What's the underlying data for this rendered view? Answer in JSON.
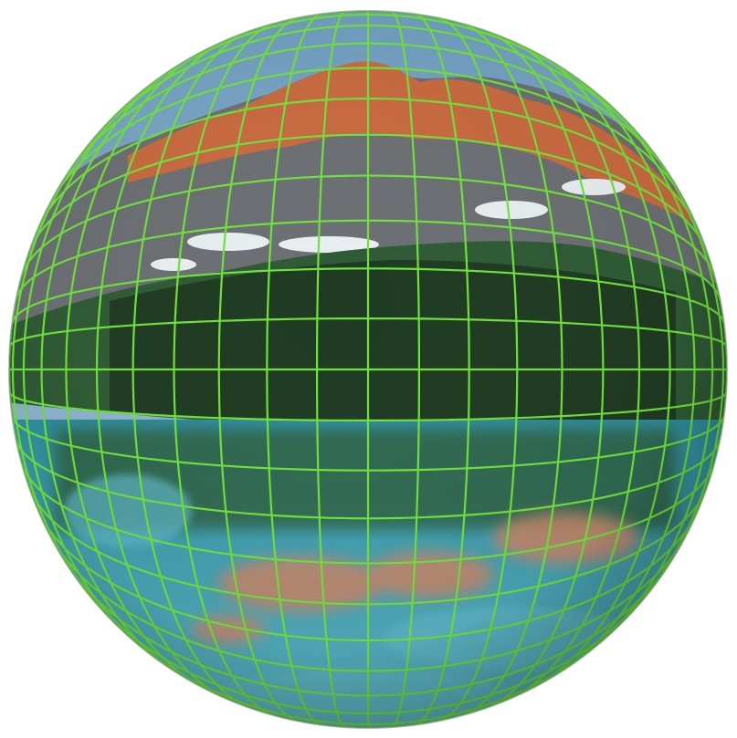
{
  "image": {
    "subject": "fisheye-sphere-with-grid",
    "palette": {
      "background": "#ffffff",
      "sky": "#6e9cbf",
      "sky_light": "#a9c7dc",
      "peak_orange": "#c8693f",
      "rock_gray": "#6b6e72",
      "snow": "#e8eef0",
      "forest_dark": "#1f3a22",
      "forest_mid": "#2f5a35",
      "lake_teal": "#2f8fa0",
      "lake_light": "#5fb7c7",
      "reflection_orange": "#c98566",
      "grid_green": "#6fe23a"
    }
  }
}
